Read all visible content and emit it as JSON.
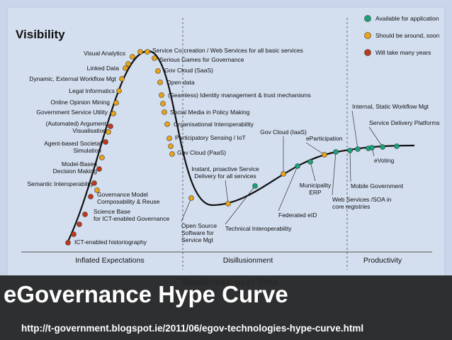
{
  "title": "Visibility",
  "legend": [
    "Available for application",
    "Should be around, soon",
    "Will take many years"
  ],
  "items": [
    {
      "lines": [
        "Visual Analytics"
      ]
    },
    {
      "lines": [
        "Linked Data"
      ]
    },
    {
      "lines": [
        "Dynamic, External Workflow Mgt"
      ]
    },
    {
      "lines": [
        "Legal Informatics"
      ]
    },
    {
      "lines": [
        "Online Opinion Mining"
      ]
    },
    {
      "lines": [
        "Government Service Utility"
      ]
    },
    {
      "lines": [
        "(Automated) Argument",
        "Visualisation"
      ]
    },
    {
      "lines": [
        "Agent-based Societal",
        "Simulation"
      ]
    },
    {
      "lines": [
        "Model-Based",
        "Decision Making"
      ]
    },
    {
      "lines": [
        "Semantic Interoperability"
      ]
    },
    {
      "lines": [
        "Governance Model",
        "Composability & Reuse"
      ]
    },
    {
      "lines": [
        "Science Base",
        "for ICT-enabled Governance"
      ]
    },
    {
      "lines": [
        "ICT-enabled historiography"
      ]
    },
    {
      "lines": [
        "Service Co-creation / Web Services for all basic services"
      ]
    },
    {
      "lines": [
        "Serious Games for Governance"
      ]
    },
    {
      "lines": [
        "Gov Cloud (SaaS)"
      ]
    },
    {
      "lines": [
        "Open data"
      ]
    },
    {
      "lines": [
        "(Seamless) Identity management & trust mechanisms"
      ]
    },
    {
      "lines": [
        "Social Media in Policy Making"
      ]
    },
    {
      "lines": [
        "Organisational Interoperability"
      ]
    },
    {
      "lines": [
        "Participatory Sensing / IoT"
      ]
    },
    {
      "lines": [
        "Gov Cloud (PaaS)"
      ]
    },
    {
      "lines": [
        "Instant, proactive Service",
        "Delivery for all services"
      ]
    },
    {
      "lines": [
        "Open Source",
        "Software for",
        "Service Mgt"
      ]
    },
    {
      "lines": [
        "Technical Interoperability"
      ]
    },
    {
      "lines": [
        "Gov Cloud (IaaS)"
      ]
    },
    {
      "lines": [
        "Federated eID"
      ]
    },
    {
      "lines": [
        "eParticipation"
      ]
    },
    {
      "lines": [
        "Municipality",
        "ERP"
      ]
    },
    {
      "lines": [
        "Web Services /SOA in",
        "core registries"
      ]
    },
    {
      "lines": [
        "Mobile Government"
      ]
    },
    {
      "lines": [
        "eVoting"
      ]
    },
    {
      "lines": [
        "Internal, Static Workflow Mgt"
      ]
    },
    {
      "lines": [
        "Service Delivery Platforms"
      ]
    }
  ],
  "phases": [
    "Inflated Expectations",
    "Disillusionment",
    "Productivity"
  ],
  "x_axis": "Readiness over time",
  "banner": {
    "title": "eGovernance Hype Curve",
    "url": "http://t-government.blogspot.ie/2011/06/egov-technologies-hype-curve.html"
  }
}
